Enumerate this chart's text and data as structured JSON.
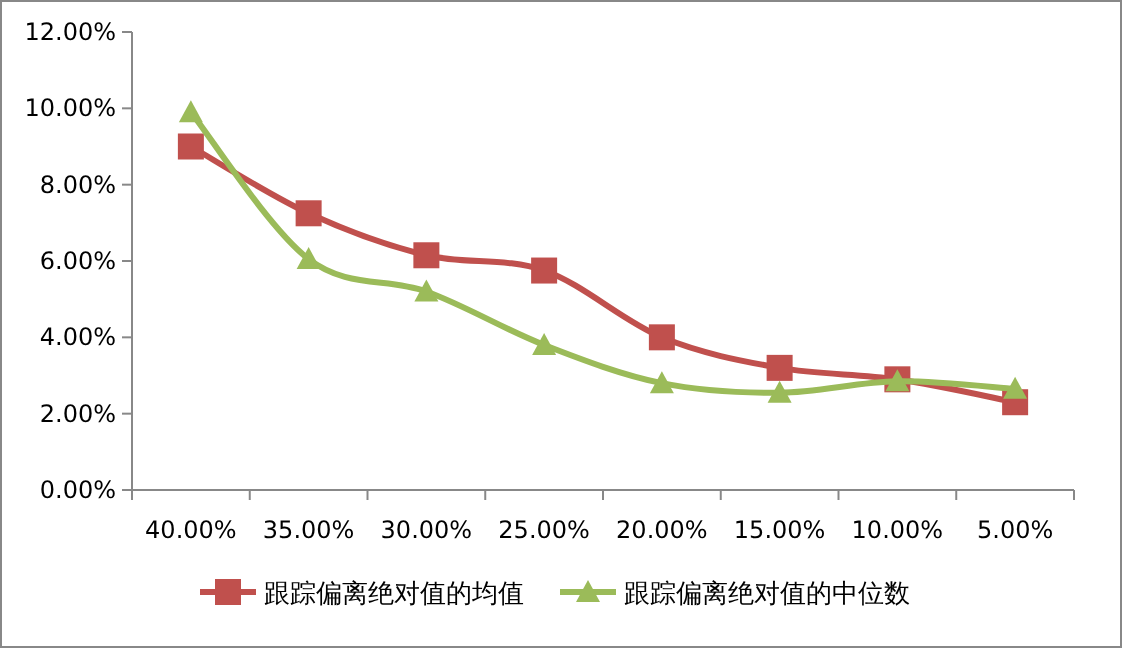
{
  "chart_data": {
    "type": "line",
    "categories": [
      "40.00%",
      "35.00%",
      "30.00%",
      "25.00%",
      "20.00%",
      "15.00%",
      "10.00%",
      "5.00%"
    ],
    "series": [
      {
        "name": "跟踪偏离绝对值的均值",
        "color": "#c0504d",
        "marker": "square",
        "values": [
          9.0,
          7.25,
          6.15,
          5.75,
          4.0,
          3.2,
          2.9,
          2.3
        ]
      },
      {
        "name": "跟踪偏离绝对值的中位数",
        "color": "#9bbb59",
        "marker": "triangle",
        "values": [
          9.9,
          6.05,
          5.2,
          3.8,
          2.8,
          2.55,
          2.85,
          2.65
        ]
      }
    ],
    "ylim": [
      0,
      12
    ],
    "yticks": [
      {
        "value": 0,
        "label": "0.00%"
      },
      {
        "value": 2,
        "label": "2.00%"
      },
      {
        "value": 4,
        "label": "4.00%"
      },
      {
        "value": 6,
        "label": "6.00%"
      },
      {
        "value": 8,
        "label": "8.00%"
      },
      {
        "value": 10,
        "label": "10.00%"
      },
      {
        "value": 12,
        "label": "12.00%"
      }
    ],
    "grid": false,
    "legend": "bottom",
    "line_style": "solid"
  }
}
